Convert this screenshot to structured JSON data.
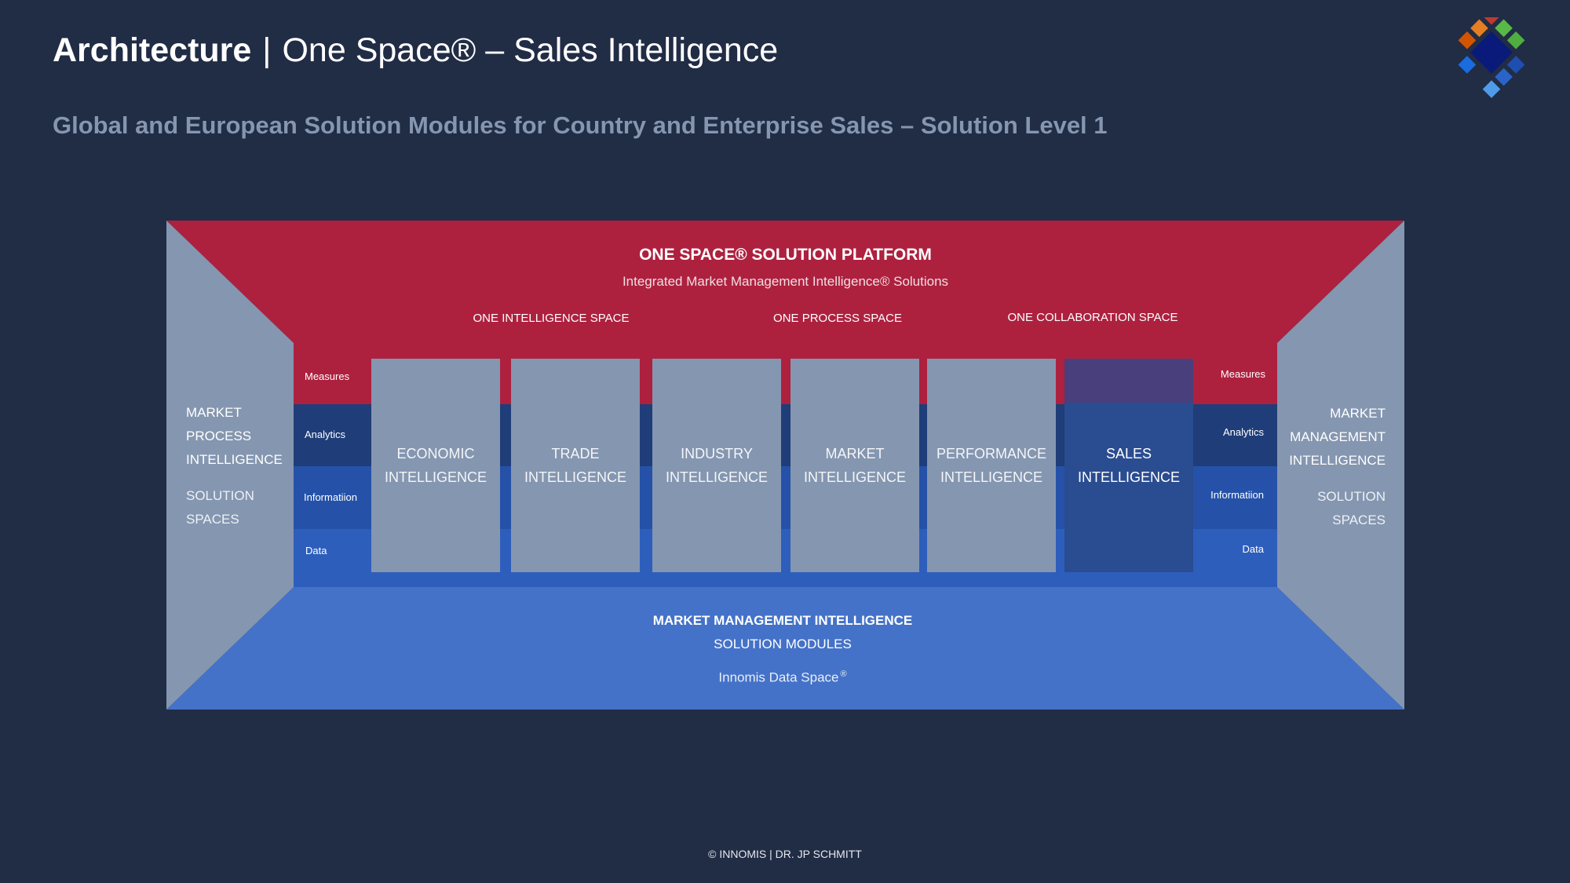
{
  "header": {
    "title_bold": "Architecture",
    "title_sep": "|",
    "title_rest": "One Space® – Sales Intelligence",
    "subtitle": "Global and European Solution Modules for Country and Enterprise Sales – Solution Level 1"
  },
  "logo": {
    "icon": "diamond-mosaic-logo",
    "colors": [
      "#c0392b",
      "#e67e22",
      "#58b947",
      "#d35400",
      "#0a1a7a",
      "#1a6ce0",
      "#1e4fb0",
      "#4f9be8"
    ]
  },
  "platform": {
    "title": "ONE SPACE® SOLUTION PLATFORM",
    "subtitle": "Integrated Market Management Intelligence® Solutions",
    "spaces": [
      "ONE INTELLIGENCE SPACE",
      "ONE PROCESS SPACE",
      "ONE COLLABORATION SPACE"
    ]
  },
  "layers": {
    "left": [
      "Measures",
      "Analytics",
      "Informatiion",
      "Data"
    ],
    "right": [
      "Measures",
      "Analytics",
      "Informatiion",
      "Data"
    ]
  },
  "modules": [
    {
      "line1": "ECONOMIC",
      "line2": "INTELLIGENCE"
    },
    {
      "line1": "TRADE",
      "line2": "INTELLIGENCE"
    },
    {
      "line1": "INDUSTRY",
      "line2": "INTELLIGENCE"
    },
    {
      "line1": "MARKET",
      "line2": "INTELLIGENCE"
    },
    {
      "line1": "PERFORMANCE",
      "line2": "INTELLIGENCE"
    },
    {
      "line1": "SALES",
      "line2": "INTELLIGENCE"
    }
  ],
  "left_panel": {
    "l1": "MARKET",
    "l2": "PROCESS",
    "l3": "INTELLIGENCE",
    "s1": "SOLUTION",
    "s2": "SPACES"
  },
  "right_panel": {
    "l1": "MARKET",
    "l2": "MANAGEMENT",
    "l3": "INTELLIGENCE",
    "s1": "SOLUTION",
    "s2": "SPACES"
  },
  "foundation": {
    "title": "MARKET MANAGEMENT INTELLIGENCE",
    "subtitle": "SOLUTION MODULES",
    "data_space": "Innomis Data Space",
    "data_space_mark": "®"
  },
  "colors": {
    "background": "#212c45",
    "platform_red": "#ad213f",
    "foundation_blue": "#4472c8",
    "side_gray": "#8596b0",
    "highlight": "#2a4c90"
  },
  "footer": "© INNOMIS | DR. JP SCHMITT"
}
